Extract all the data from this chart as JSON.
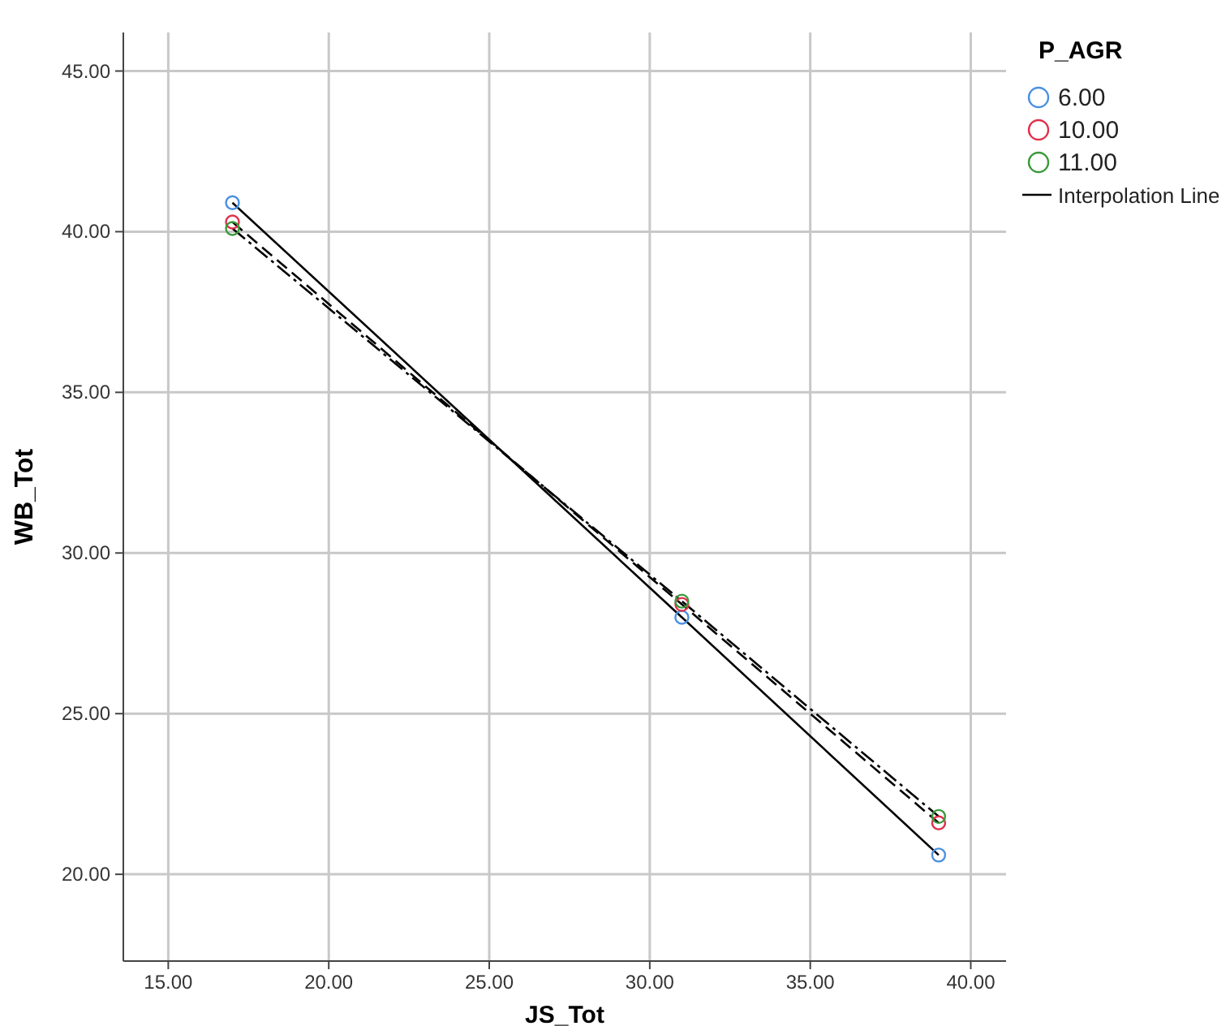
{
  "chart_data": {
    "type": "scatter",
    "xlabel": "JS_Tot",
    "ylabel": "WB_Tot",
    "legend_title": "P_AGR",
    "x": [
      17,
      31,
      39
    ],
    "series": [
      {
        "name": "6.00",
        "color": "#4a90e2",
        "values": [
          40.9,
          28.0,
          20.6
        ],
        "marker": "circle"
      },
      {
        "name": "10.00",
        "color": "#e0314b",
        "values": [
          40.3,
          28.4,
          21.6
        ],
        "marker": "circle"
      },
      {
        "name": "11.00",
        "color": "#3a9a3a",
        "values": [
          40.1,
          28.5,
          21.8
        ],
        "marker": "circle"
      },
      {
        "name": "Interpolation Line",
        "type": "line",
        "color": "#000000",
        "values": [
          40.9,
          28.0,
          20.6
        ],
        "line_style": "solid",
        "marker": "none"
      },
      {
        "type": "line",
        "color": "#000000",
        "values": [
          40.3,
          28.4,
          21.6
        ],
        "line_style": "dashed",
        "marker": "none"
      },
      {
        "type": "line",
        "color": "#000000",
        "values": [
          40.1,
          28.5,
          21.8
        ],
        "line_style": "dotted",
        "marker": "none"
      }
    ],
    "xlim": [
      13.6,
      41.1
    ],
    "xticks": [
      {
        "value": 15,
        "label": "15.00"
      },
      {
        "value": 20,
        "label": "20.00"
      },
      {
        "value": 25,
        "label": "25.00"
      },
      {
        "value": 30,
        "label": "30.00"
      },
      {
        "value": 35,
        "label": "35.00"
      },
      {
        "value": 40,
        "label": "40.00"
      }
    ],
    "ylim": [
      17.3,
      46.2
    ],
    "yticks": [
      {
        "value": 20,
        "label": "20.00"
      },
      {
        "value": 25,
        "label": "25.00"
      },
      {
        "value": 30,
        "label": "30.00"
      },
      {
        "value": 35,
        "label": "35.00"
      },
      {
        "value": 40,
        "label": "40.00"
      },
      {
        "value": 45,
        "label": "45.00"
      }
    ],
    "grid": true,
    "legend": "top right"
  }
}
